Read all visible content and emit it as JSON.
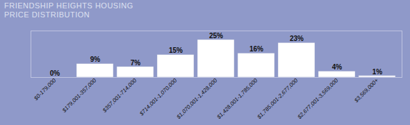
{
  "chart_data": {
    "type": "bar",
    "title": "FRIENDSHIP HEIGHTS HOUSING\nPRICE DISTRIBUTION",
    "categories": [
      "$0-179,000",
      "$179,001-357,000",
      "$357,001-714,000",
      "$714,001-1,070,000",
      "$1,070,001-1,428,000",
      "$1,428,001-1,785,000",
      "$1,785,001-2,677,000",
      "$2,677,001-3,569,000",
      "$3,569,000+"
    ],
    "values": [
      0,
      9,
      7,
      15,
      25,
      16,
      23,
      4,
      1
    ],
    "value_labels": [
      "0%",
      "9%",
      "7%",
      "15%",
      "25%",
      "16%",
      "23%",
      "4%",
      "1%"
    ],
    "color": "#ffffff",
    "ylim": [
      0,
      31
    ],
    "yticks": [],
    "grid": false,
    "data_labels": true,
    "tick_labels": "x"
  }
}
